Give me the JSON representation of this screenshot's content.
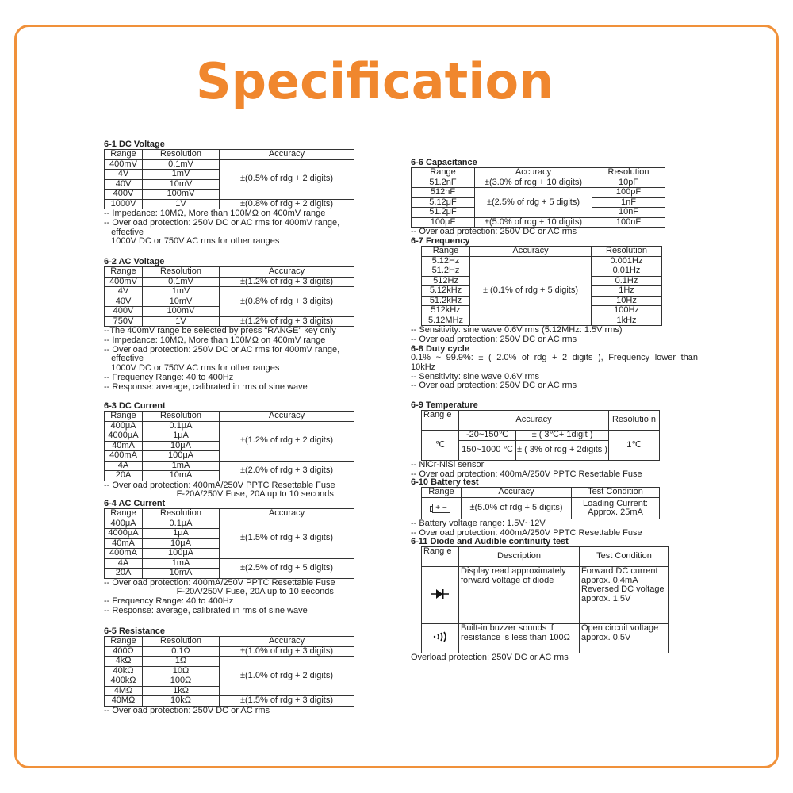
{
  "title": "Specification",
  "colors": {
    "frame": "#f0913a",
    "title": "#f0872e"
  },
  "sections": [
    {
      "id": "s61",
      "title": "6-1 DC Voltage",
      "rows": [
        [
          {
            "t": "Range"
          },
          {
            "t": "Resolution"
          },
          {
            "t": "Accuracy"
          }
        ],
        [
          {
            "t": "400mV"
          },
          {
            "t": "0.1mV"
          },
          {
            "t": "±(0.5% of rdg + 2 digits)",
            "rs": 4
          }
        ],
        [
          {
            "t": "4V"
          },
          {
            "t": "1mV"
          }
        ],
        [
          {
            "t": "40V"
          },
          {
            "t": "10mV"
          }
        ],
        [
          {
            "t": "400V"
          },
          {
            "t": "100mV"
          }
        ],
        [
          {
            "t": "1000V"
          },
          {
            "t": "1V"
          },
          {
            "t": "±(0.8% of rdg + 2 digits)"
          }
        ]
      ],
      "notes": [
        "-- Impedance: 10MΩ, More than 100MΩ on 400mV range",
        "-- Overload protection: 250V DC or AC rms for 400mV range,",
        "   effective",
        "   1000V DC or 750V AC rms for other ranges"
      ]
    },
    {
      "id": "s62",
      "title": "6-2 AC Voltage",
      "rows": [
        [
          {
            "t": "Range"
          },
          {
            "t": "Resolution"
          },
          {
            "t": "Accuracy"
          }
        ],
        [
          {
            "t": "400mV"
          },
          {
            "t": "0.1mV"
          },
          {
            "t": "±(1.2% of rdg + 3 digits)"
          }
        ],
        [
          {
            "t": "4V"
          },
          {
            "t": "1mV"
          },
          {
            "t": "±(0.8% of rdg + 3 digits)",
            "rs": 3
          }
        ],
        [
          {
            "t": "40V"
          },
          {
            "t": "10mV"
          }
        ],
        [
          {
            "t": "400V"
          },
          {
            "t": "100mV"
          }
        ],
        [
          {
            "t": "750V"
          },
          {
            "t": "1V"
          },
          {
            "t": "±(1.2% of rdg + 3 digits)"
          }
        ]
      ],
      "notes": [
        "--The 400mV range be selected by press \"RANGE\" key only",
        "-- Impedance: 10MΩ, More than 100MΩ on 400mV range",
        "-- Overload protection: 250V DC or AC rms for 400mV range,",
        "   effective",
        "   1000V DC or 750V AC rms for other ranges",
        "-- Frequency Range: 40 to 400Hz",
        "-- Response: average, calibrated in rms of sine wave"
      ]
    },
    {
      "id": "s63",
      "title": "6-3 DC Current",
      "rows": [
        [
          {
            "t": "Range"
          },
          {
            "t": "Resolution"
          },
          {
            "t": "Accuracy"
          }
        ],
        [
          {
            "t": "400μA"
          },
          {
            "t": "0.1μA"
          },
          {
            "t": "±(1.2% of rdg + 2 digits)",
            "rs": 4
          }
        ],
        [
          {
            "t": "4000μA"
          },
          {
            "t": "1μA"
          }
        ],
        [
          {
            "t": "40mA"
          },
          {
            "t": "10μA"
          }
        ],
        [
          {
            "t": "400mA"
          },
          {
            "t": "100μA"
          }
        ],
        [
          {
            "t": "4A"
          },
          {
            "t": "1mA"
          },
          {
            "t": "±(2.0% of rdg + 3 digits)",
            "rs": 2
          }
        ],
        [
          {
            "t": "20A"
          },
          {
            "t": "10mA"
          }
        ]
      ],
      "notes": [
        "-- Overload protection: 400mA/250V PPTC Resettable Fuse",
        "                              F-20A/250V Fuse, 20A up to 10 seconds"
      ]
    },
    {
      "id": "s64",
      "title": "6-4 AC Current",
      "rows": [
        [
          {
            "t": "Range"
          },
          {
            "t": "Resolution"
          },
          {
            "t": "Accuracy"
          }
        ],
        [
          {
            "t": "400μA"
          },
          {
            "t": "0.1μA"
          },
          {
            "t": "±(1.5% of rdg + 3 digits)",
            "rs": 4
          }
        ],
        [
          {
            "t": "4000μA"
          },
          {
            "t": "1μA"
          }
        ],
        [
          {
            "t": "40mA"
          },
          {
            "t": "10μA"
          }
        ],
        [
          {
            "t": "400mA"
          },
          {
            "t": "100μA"
          }
        ],
        [
          {
            "t": "4A"
          },
          {
            "t": "1mA"
          },
          {
            "t": "±(2.5% of rdg + 5 digits)",
            "rs": 2
          }
        ],
        [
          {
            "t": "20A"
          },
          {
            "t": "10mA"
          }
        ]
      ],
      "notes": [
        "-- Overload protection: 400mA/250V PPTC Resettable Fuse",
        "                              F-20A/250V Fuse, 20A up to 10 seconds",
        "-- Frequency Range: 40 to 400Hz",
        "-- Response: average, calibrated in rms of sine wave"
      ]
    },
    {
      "id": "s65",
      "title": "6-5 Resistance",
      "rows": [
        [
          {
            "t": "Range"
          },
          {
            "t": "Resolution"
          },
          {
            "t": "Accuracy"
          }
        ],
        [
          {
            "t": "400Ω"
          },
          {
            "t": "0.1Ω"
          },
          {
            "t": "±(1.0% of rdg + 3 digits)"
          }
        ],
        [
          {
            "t": "4kΩ"
          },
          {
            "t": "1Ω"
          },
          {
            "t": "±(1.0% of rdg + 2 digits)",
            "rs": 4
          }
        ],
        [
          {
            "t": "40kΩ"
          },
          {
            "t": "10Ω"
          }
        ],
        [
          {
            "t": "400kΩ"
          },
          {
            "t": "100Ω"
          }
        ],
        [
          {
            "t": "4MΩ"
          },
          {
            "t": "1kΩ"
          }
        ],
        [
          {
            "t": "40MΩ"
          },
          {
            "t": "10kΩ"
          },
          {
            "t": "±(1.5% of rdg + 3 digits)"
          }
        ]
      ],
      "notes": [
        "-- Overload protection: 250V DC or AC rms"
      ]
    },
    {
      "id": "s66",
      "title": "6-6 Capacitance",
      "rows": [
        [
          {
            "t": "Range"
          },
          {
            "t": "Accuracy"
          },
          {
            "t": "Resolution"
          }
        ],
        [
          {
            "t": "51.2nF"
          },
          {
            "t": "±(3.0% of rdg + 10 digits)"
          },
          {
            "t": "10pF"
          }
        ],
        [
          {
            "t": "512nF"
          },
          {
            "t": "±(2.5% of rdg + 5 digits)",
            "rs": 3
          },
          {
            "t": "100pF"
          }
        ],
        [
          {
            "t": "5.12μF"
          },
          {
            "t": "1nF"
          }
        ],
        [
          {
            "t": "51.2μF"
          },
          {
            "t": "10nF"
          }
        ],
        [
          {
            "t": "100μF"
          },
          {
            "t": "±(5.0% of rdg + 10 digits)"
          },
          {
            "t": "100nF"
          }
        ]
      ],
      "notes": [
        "-- Overload protection: 250V DC or AC rms"
      ]
    },
    {
      "id": "s67",
      "title": "6-7 Frequency",
      "rows": [
        [
          {
            "t": "Range"
          },
          {
            "t": "Accuracy"
          },
          {
            "t": "Resolution"
          }
        ],
        [
          {
            "t": "5.12Hz"
          },
          {
            "t": "± (0.1% of rdg + 5 digits)",
            "rs": 7
          },
          {
            "t": "0.001Hz"
          }
        ],
        [
          {
            "t": "51.2Hz"
          },
          {
            "t": "0.01Hz"
          }
        ],
        [
          {
            "t": "512Hz"
          },
          {
            "t": "0.1Hz"
          }
        ],
        [
          {
            "t": "5.12kHz"
          },
          {
            "t": "1Hz"
          }
        ],
        [
          {
            "t": "51.2kHz"
          },
          {
            "t": "10Hz"
          }
        ],
        [
          {
            "t": "512kHz"
          },
          {
            "t": "100Hz"
          }
        ],
        [
          {
            "t": "5.12MHz"
          },
          {
            "t": "1kHz"
          }
        ]
      ],
      "notes": [
        "-- Sensitivity: sine wave 0.6V rms (5.12MHz: 1.5V rms)",
        "-- Overload protection: 250V DC or AC rms"
      ]
    },
    {
      "id": "s68",
      "title": "6-8 Duty cycle",
      "rows": [],
      "para": "0.1% ~ 99.9%: ± ( 2.0% of rdg + 2 digits ), Frequency lower than",
      "notes": [
        "10kHz",
        "-- Sensitivity: sine wave 0.6V rms",
        "-- Overload protection: 250V DC or AC rms"
      ]
    },
    {
      "id": "s69",
      "title": "6-9 Temperature",
      "rows": [
        [
          {
            "t": "Rang e",
            "cls": "left"
          },
          {
            "t": "Accuracy",
            "cs": 2
          },
          {
            "t": "Resolutio n"
          }
        ],
        [
          {
            "t": "℃",
            "rs": 2
          },
          {
            "t": "-20~150℃"
          },
          {
            "t": "± ( 3℃+ 1digit )"
          },
          {
            "t": "1℃",
            "rs": 2
          }
        ],
        [
          {
            "t": "150~1000 ℃"
          },
          {
            "t": "± ( 3% of rdg + 2digits )"
          }
        ]
      ],
      "notes": [
        "-- NiCr-NiSi sensor",
        "-- Overload protection: 400mA/250V PPTC Resettable Fuse"
      ]
    },
    {
      "id": "s610",
      "title": "6-10 Battery test",
      "rows": [
        [
          {
            "t": "Range"
          },
          {
            "t": "Accuracy"
          },
          {
            "t": "Test Condition"
          }
        ],
        [
          {
            "icon": "battery-icon",
            "t": "+ −"
          },
          {
            "t": "±(5.0% of rdg + 5 digits)"
          },
          {
            "t": "Loading Current: Approx. 25mA"
          }
        ]
      ],
      "notes": [
        "-- Battery voltage range: 1.5V~12V",
        "-- Overload protection: 400mA/250V PPTC Resettable Fuse"
      ]
    },
    {
      "id": "s611",
      "title": "6-11 Diode and Audible continuity test",
      "rows": [
        [
          {
            "t": "Rang e",
            "cls": "left"
          },
          {
            "t": "Description"
          },
          {
            "t": "Test Condition"
          }
        ],
        [
          {
            "icon": "diode-icon"
          },
          {
            "t": "Display read approximately forward voltage of diode",
            "cls": "left"
          },
          {
            "t": "Forward DC current approx. 0.4mA Reversed DC voltage approx. 1.5V",
            "cls": "left"
          }
        ],
        [
          {
            "icon": "buzzer-icon",
            "t": "·))"
          },
          {
            "t": "Built-in buzzer sounds if resistance is less than 100Ω",
            "cls": "left"
          },
          {
            "t": "Open circuit voltage approx. 0.5V",
            "cls": "left"
          }
        ]
      ],
      "notes": [
        "Overload protection: 250V DC or AC rms"
      ]
    }
  ]
}
